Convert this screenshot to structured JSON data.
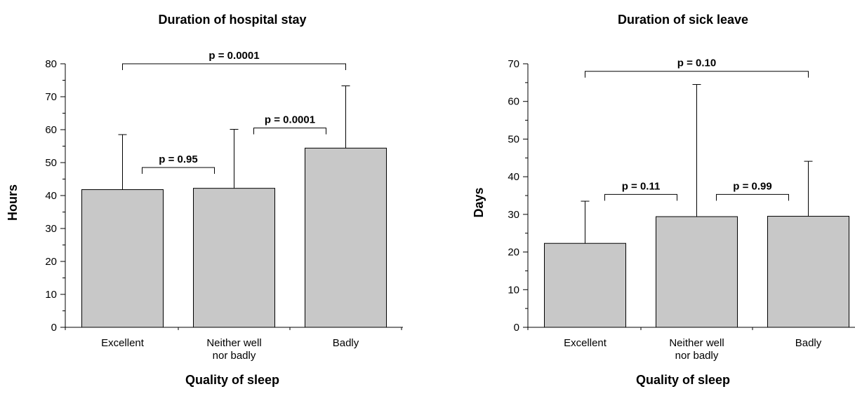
{
  "chart_data": [
    {
      "type": "bar",
      "title": "Duration of hospital stay",
      "xlabel": "Quality of sleep",
      "ylabel": "Hours",
      "categories": [
        [
          "Excellent"
        ],
        [
          "Neither well",
          "nor badly"
        ],
        [
          "Badly"
        ]
      ],
      "values": [
        41.8,
        42.2,
        54.4
      ],
      "error_upper": [
        58.5,
        60.1,
        73.3
      ],
      "ylim": [
        0,
        80
      ],
      "yticks": [
        0,
        10,
        20,
        30,
        40,
        50,
        60,
        70,
        80
      ],
      "comparisons": [
        {
          "from": 0,
          "to": 2,
          "label": "p = 0.0001",
          "y": 80
        },
        {
          "from": 0,
          "to": 1,
          "label": "p = 0.95",
          "y": 48.5
        },
        {
          "from": 1,
          "to": 2,
          "label": "p = 0.0001",
          "y": 60.5
        }
      ]
    },
    {
      "type": "bar",
      "title": "Duration of sick leave",
      "xlabel": "Quality of sleep",
      "ylabel": "Days",
      "categories": [
        [
          "Excellent"
        ],
        [
          "Neither well",
          "nor badly"
        ],
        [
          "Badly"
        ]
      ],
      "values": [
        22.3,
        29.4,
        29.5
      ],
      "error_upper": [
        33.5,
        64.5,
        44.1
      ],
      "ylim": [
        0,
        70
      ],
      "yticks": [
        0,
        10,
        20,
        30,
        40,
        50,
        60,
        70
      ],
      "comparisons": [
        {
          "from": 0,
          "to": 2,
          "label": "p = 0.10",
          "y": 68
        },
        {
          "from": 0,
          "to": 1,
          "label": "p = 0.11",
          "y": 35.3
        },
        {
          "from": 1,
          "to": 2,
          "label": "p = 0.99",
          "y": 35.3
        }
      ]
    }
  ]
}
